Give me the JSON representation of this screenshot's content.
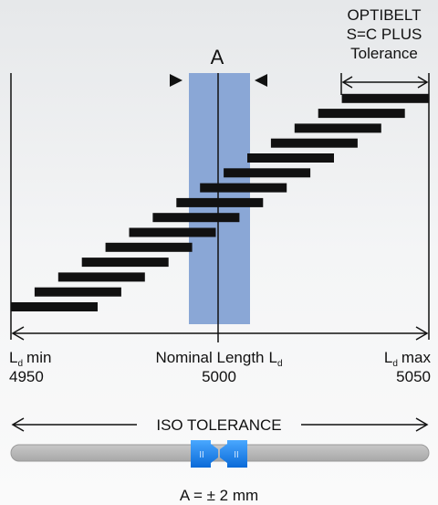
{
  "tolerance_label": {
    "line1": "OPTIBELT",
    "line2": "S=C PLUS",
    "line3": "Tolerance"
  },
  "band_label": "A",
  "axis": {
    "min": {
      "symbol": "L",
      "subscript": "d",
      "suffix": "min",
      "value": "4950"
    },
    "nominal": {
      "prefix": "Nominal Length",
      "symbol": "L",
      "subscript": "d",
      "value": "5000"
    },
    "max": {
      "symbol": "L",
      "subscript": "d",
      "suffix": "max",
      "value": "5050"
    }
  },
  "iso_label": "ISO TOLERANCE",
  "slider": {
    "handle_left": "II",
    "handle_right": "II"
  },
  "footer": "A = ± 2 mm"
}
